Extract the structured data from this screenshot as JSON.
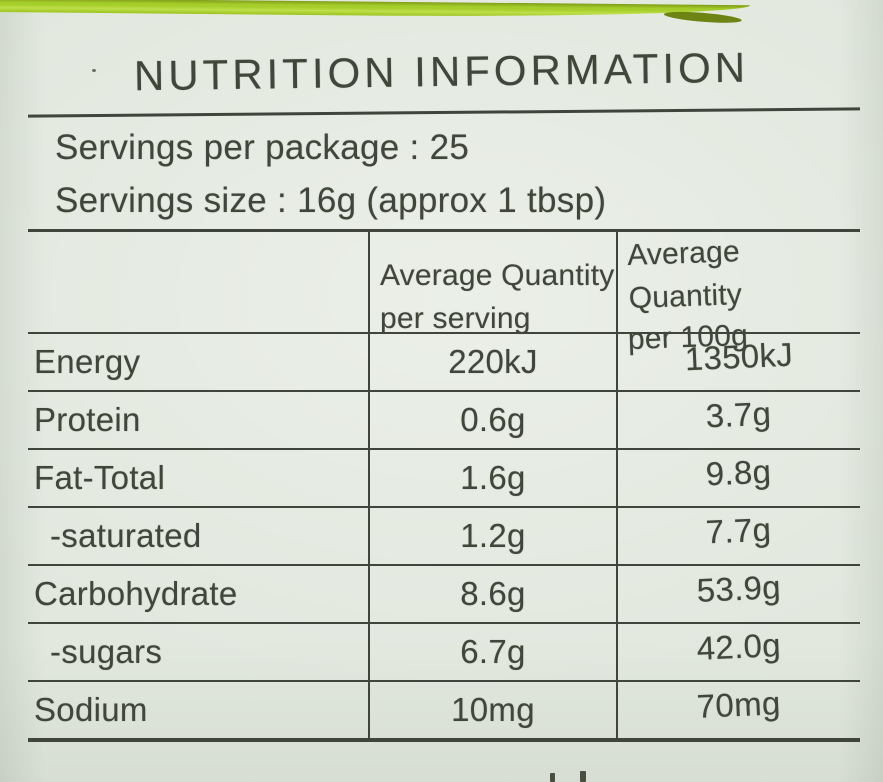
{
  "colors": {
    "band_green": "#a6ce2b",
    "label_background": "#e2e8de",
    "ink": "#42463a",
    "line": "#40443a"
  },
  "panel": {
    "title": "NUTRITION INFORMATION",
    "servings": [
      {
        "text": "Servings per package : 25"
      },
      {
        "text": "Servings size : 16g (approx 1 tbsp)"
      }
    ],
    "table": {
      "columns": {
        "per_serving": {
          "line1": "Average Quantity",
          "line2": "per serving"
        },
        "per_100g": {
          "line1": "Average Quantity",
          "line2": "per 100g"
        }
      },
      "rows": [
        {
          "nutrient": "Energy",
          "per_serving": "220kJ",
          "per_100g": "1350kJ"
        },
        {
          "nutrient": "Protein",
          "per_serving": "0.6g",
          "per_100g": "3.7g"
        },
        {
          "nutrient": "Fat-Total",
          "per_serving": "1.6g",
          "per_100g": "9.8g"
        },
        {
          "nutrient": "-saturated",
          "per_serving": "1.2g",
          "per_100g": "7.7g"
        },
        {
          "nutrient": "Carbohydrate",
          "per_serving": "8.6g",
          "per_100g": "53.9g"
        },
        {
          "nutrient": "-sugars",
          "per_serving": "6.7g",
          "per_100g": "42.0g"
        },
        {
          "nutrient": "Sodium",
          "per_serving": "10mg",
          "per_100g": "70mg"
        }
      ]
    }
  }
}
